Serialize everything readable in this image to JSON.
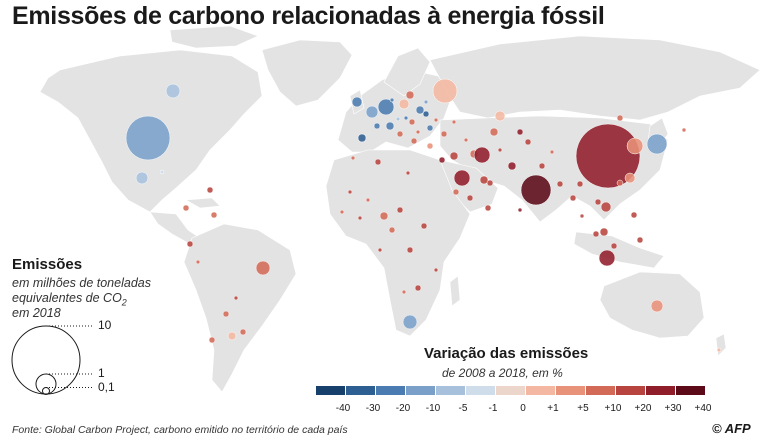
{
  "title": "Emissões de carbono relacionadas à energia fóssil",
  "size_legend": {
    "heading": "Emissões",
    "line1": "em milhões de toneladas",
    "line2": "equivalentes de CO",
    "line2_sub": "2",
    "line3": "em 2018",
    "labels": [
      "10",
      "1",
      "0,1"
    ]
  },
  "color_legend": {
    "heading": "Variação das emissões",
    "subheading": "de 2008 a 2018, em %",
    "ticks": [
      "-40",
      "-30",
      "-20",
      "-10",
      "-5",
      "-1",
      "0",
      "+1",
      "+5",
      "+10",
      "+20",
      "+30",
      "+40"
    ],
    "colors": [
      "#17406d",
      "#2d5f93",
      "#4b7cb1",
      "#7aa0c9",
      "#a7c1dd",
      "#cfdcea",
      "#ecd6cc",
      "#f4b8a2",
      "#e8927a",
      "#d36a58",
      "#b8443f",
      "#8f1d2a",
      "#5c0918"
    ]
  },
  "source": "Fonte: Global Carbon Project, carbono emitido no território de cada país",
  "credit": "© AFP",
  "land_color": "#e3e3e3"
}
